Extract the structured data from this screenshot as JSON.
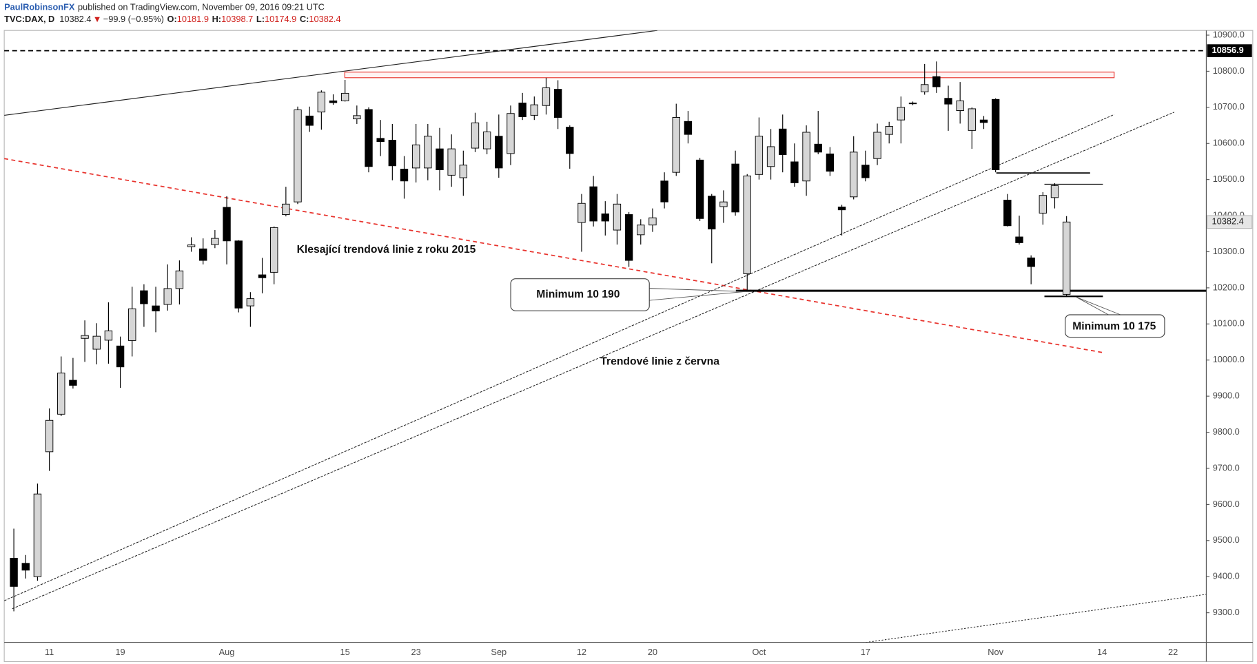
{
  "header": {
    "author": "PaulRobinsonFX",
    "published": "published on TradingView.com, November 09, 2016 09:21 UTC",
    "symbol": "TVC:DAX, D",
    "arrow": "▼",
    "change": "−99.9 (−0.95%)",
    "ohlc_labels": [
      "O:",
      "H:",
      "L:",
      "C:"
    ]
  },
  "chart_data": {
    "type": "candlestick",
    "categories": [
      null,
      null,
      null,
      "11",
      null,
      null,
      null,
      null,
      null,
      "19",
      null,
      null,
      null,
      null,
      null,
      null,
      null,
      null,
      "Aug",
      null,
      null,
      null,
      null,
      null,
      null,
      null,
      null,
      null,
      "15",
      null,
      null,
      null,
      null,
      null,
      "23",
      null,
      null,
      null,
      null,
      null,
      null,
      "Sep",
      null,
      null,
      null,
      null,
      null,
      null,
      "12",
      null,
      null,
      null,
      null,
      null,
      "20",
      null,
      null,
      null,
      null,
      null,
      null,
      null,
      null,
      "Oct",
      null,
      null,
      null,
      null,
      null,
      null,
      null,
      null,
      "17",
      null,
      null,
      null,
      null,
      null,
      null,
      null,
      null,
      null,
      null,
      "Nov",
      null,
      null,
      null,
      null,
      null,
      null,
      null,
      null,
      "14",
      null,
      null,
      null,
      null,
      null,
      "22",
      null
    ],
    "open": [
      9451,
      9437,
      9400,
      9746,
      9850,
      9944,
      10060,
      10030,
      10055,
      10039,
      10054,
      10192,
      10150,
      10154,
      10198,
      10314,
      10308,
      10320,
      10423,
      10330,
      10150,
      10236,
      10243,
      10403,
      10438,
      10676,
      10687,
      10718,
      10718,
      10668,
      10694,
      10614,
      10609,
      10529,
      10532,
      10532,
      10585,
      10512,
      10505,
      10587,
      10585,
      10620,
      10572,
      10712,
      10678,
      10705,
      10750,
      10645,
      10381,
      10480,
      10405,
      10360,
      10403,
      10347,
      10374,
      10496,
      10520,
      10661,
      10554,
      10454,
      10425,
      10543,
      10239,
      10514,
      10536,
      10640,
      10549,
      10496,
      10598,
      10571,
      10424,
      10452,
      10540,
      10558,
      10625,
      10665,
      10712,
      10743,
      10785,
      10725,
      10691,
      10636,
      10665,
      10722,
      10443,
      10341,
      10283,
      10407,
      10450,
      10181.9,
      null,
      null,
      null,
      null,
      null,
      null,
      null,
      null,
      null,
      null
    ],
    "high": [
      9533,
      9460,
      9658,
      9866,
      10010,
      10006,
      10110,
      10102,
      10160,
      10065,
      10203,
      10210,
      10203,
      10265,
      10276,
      10340,
      10337,
      10360,
      10454,
      10332,
      10188,
      10283,
      10370,
      10480,
      10702,
      10702,
      10747,
      10736,
      10776,
      10705,
      10700,
      10665,
      10654,
      10565,
      10654,
      10654,
      10643,
      10625,
      10580,
      10685,
      10660,
      10680,
      10705,
      10740,
      10730,
      10782,
      10775,
      10650,
      10460,
      10510,
      10440,
      10460,
      10410,
      10390,
      10420,
      10520,
      10710,
      10690,
      10560,
      10460,
      10470,
      10580,
      10515,
      10672,
      10640,
      10680,
      10600,
      10650,
      10690,
      10590,
      10430,
      10620,
      10580,
      10655,
      10660,
      10730,
      10716,
      10820,
      10827,
      10760,
      10770,
      10700,
      10676,
      10725,
      10460,
      10400,
      10290,
      10465,
      10490,
      10398.7,
      null,
      null,
      null,
      null,
      null,
      null,
      null,
      null,
      null,
      null
    ],
    "low": [
      9304,
      9395,
      9389,
      9693,
      9845,
      9921,
      9995,
      9988,
      9990,
      9923,
      10010,
      10092,
      10077,
      10137,
      10154,
      10300,
      10265,
      10310,
      10265,
      10132,
      10092,
      10185,
      10210,
      10398,
      10432,
      10632,
      10638,
      10707,
      10716,
      10654,
      10520,
      10565,
      10498,
      10447,
      10492,
      10498,
      10470,
      10480,
      10455,
      10576,
      10570,
      10505,
      10540,
      10665,
      10665,
      10680,
      10640,
      10530,
      10300,
      10370,
      10345,
      10320,
      10258,
      10320,
      10355,
      10420,
      10510,
      10600,
      10385,
      10268,
      10380,
      10400,
      10190,
      10500,
      10500,
      10520,
      10480,
      10455,
      10570,
      10510,
      10345,
      10445,
      10495,
      10540,
      10600,
      10600,
      10706,
      10735,
      10740,
      10635,
      10655,
      10585,
      10640,
      10520,
      10370,
      10320,
      10210,
      10375,
      10420,
      10174.9,
      null,
      null,
      null,
      null,
      null,
      null,
      null,
      null,
      null,
      null
    ],
    "close": [
      9373,
      9418,
      9629,
      9833,
      9964,
      9930,
      10068,
      10066,
      10081,
      9981,
      10142,
      10156,
      10136,
      10198,
      10247,
      10319,
      10276,
      10337,
      10330,
      10144,
      10170,
      10228,
      10367,
      10432,
      10693,
      10650,
      10742,
      10713,
      10739,
      10677,
      10536,
      10605,
      10538,
      10496,
      10596,
      10620,
      10527,
      10585,
      10540,
      10657,
      10632,
      10532,
      10683,
      10674,
      10707,
      10754,
      10672,
      10572,
      10434,
      10385,
      10385,
      10432,
      10276,
      10374,
      10394,
      10438,
      10672,
      10625,
      10392,
      10363,
      10438,
      10410,
      10510,
      10620,
      10591,
      10569,
      10491,
      10631,
      10576,
      10523,
      10416,
      10576,
      10505,
      10631,
      10647,
      10700,
      10711,
      10763,
      10757,
      10709,
      10718,
      10696,
      10658,
      10527,
      10372,
      10325,
      10259,
      10456,
      10483,
      10382.4,
      null,
      null,
      null,
      null,
      null,
      null,
      null,
      null,
      null,
      null
    ],
    "up_color": "#d6d6d6",
    "down_color": "#000000",
    "ylim": [
      9218,
      10913
    ],
    "yticks": [
      {
        "value": 9300,
        "label": "9300.0"
      },
      {
        "value": 9400,
        "label": "9400.0"
      },
      {
        "value": 9500,
        "label": "9500.0"
      },
      {
        "value": 9600,
        "label": "9600.0"
      },
      {
        "value": 9700,
        "label": "9700.0"
      },
      {
        "value": 9800,
        "label": "9800.0"
      },
      {
        "value": 9900,
        "label": "9900.0"
      },
      {
        "value": 10000,
        "label": "10000.0"
      },
      {
        "value": 10100,
        "label": "10100.0"
      },
      {
        "value": 10200,
        "label": "10200.0"
      },
      {
        "value": 10300,
        "label": "10300.0"
      },
      {
        "value": 10400,
        "label": "10400.0"
      },
      {
        "value": 10500,
        "label": "10500.0"
      },
      {
        "value": 10600,
        "label": "10600.0"
      },
      {
        "value": 10700,
        "label": "10700.0"
      },
      {
        "value": 10800,
        "label": "10800.0"
      },
      {
        "value": 10900,
        "label": "10900.0"
      }
    ],
    "grid": false,
    "level_line": 10856.9,
    "annotations": {
      "downtrend": "Klesající trendová linie z roku 2015",
      "june_trend": "Trendové linie z června",
      "minimum_1": "Minimum 10 190",
      "minimum_2": "Minimum 10 175"
    }
  }
}
